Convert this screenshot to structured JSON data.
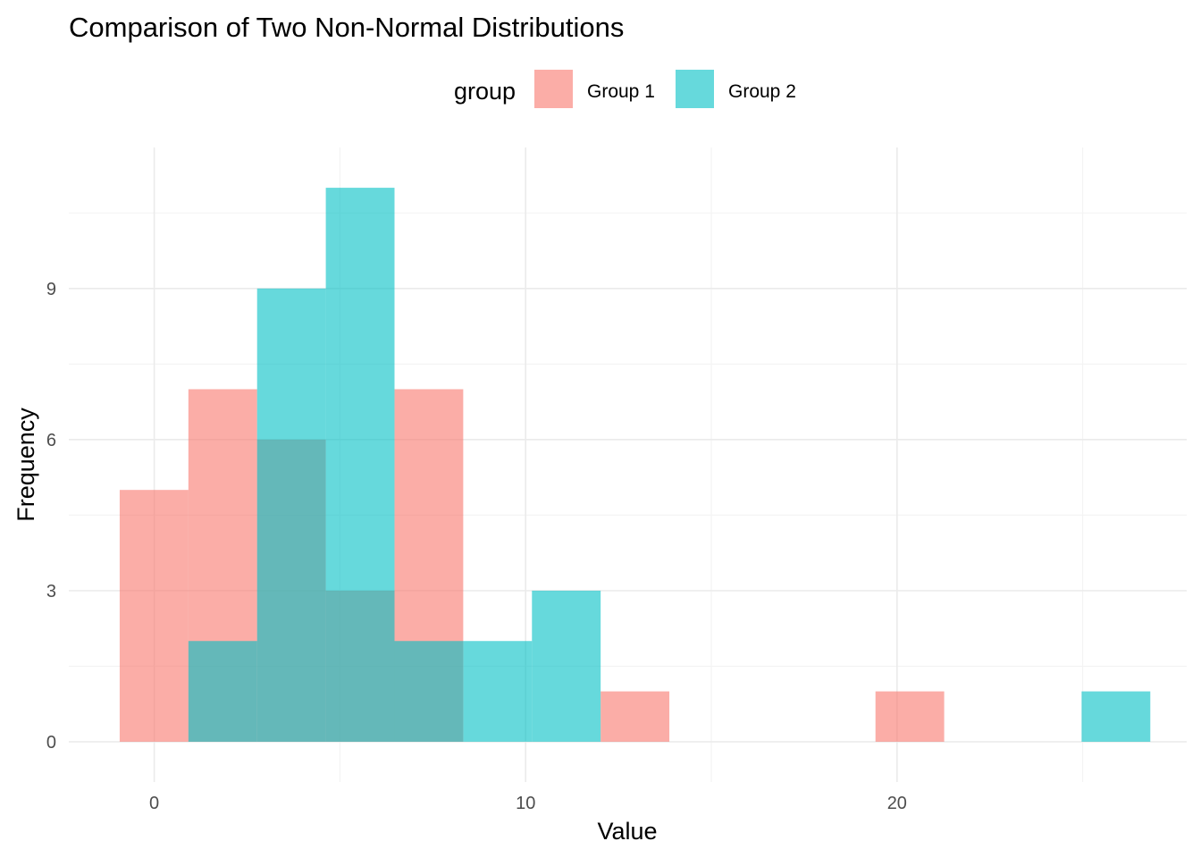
{
  "chart_data": {
    "type": "histogram",
    "title": "Comparison of Two Non-Normal Distributions",
    "xlabel": "Value",
    "ylabel": "Frequency",
    "xlim": [
      -2.3,
      27.8
    ],
    "ylim": [
      -0.8,
      11.8
    ],
    "x_ticks": [
      0,
      10,
      20
    ],
    "y_ticks": [
      0,
      3,
      6,
      9
    ],
    "grid": true,
    "legend": {
      "title": "group",
      "position": "top"
    },
    "bin_width": 1.85,
    "overlap_color": "#63b5b5",
    "series": [
      {
        "name": "Group 1",
        "color": "#F8766D",
        "bins": [
          {
            "x0": -0.93,
            "x1": 0.92,
            "count": 5
          },
          {
            "x0": 0.92,
            "x1": 2.77,
            "count": 7
          },
          {
            "x0": 2.77,
            "x1": 4.62,
            "count": 6
          },
          {
            "x0": 4.62,
            "x1": 6.47,
            "count": 3
          },
          {
            "x0": 6.47,
            "x1": 8.32,
            "count": 7
          },
          {
            "x0": 12.02,
            "x1": 13.87,
            "count": 1
          },
          {
            "x0": 19.42,
            "x1": 21.27,
            "count": 1
          }
        ]
      },
      {
        "name": "Group 2",
        "color": "#00BFC4",
        "bins": [
          {
            "x0": 0.92,
            "x1": 2.77,
            "count": 2
          },
          {
            "x0": 2.77,
            "x1": 4.62,
            "count": 9
          },
          {
            "x0": 4.62,
            "x1": 6.47,
            "count": 11
          },
          {
            "x0": 6.47,
            "x1": 8.32,
            "count": 2
          },
          {
            "x0": 8.32,
            "x1": 10.17,
            "count": 2
          },
          {
            "x0": 10.17,
            "x1": 12.02,
            "count": 3
          },
          {
            "x0": 24.97,
            "x1": 26.82,
            "count": 1
          }
        ]
      }
    ]
  }
}
